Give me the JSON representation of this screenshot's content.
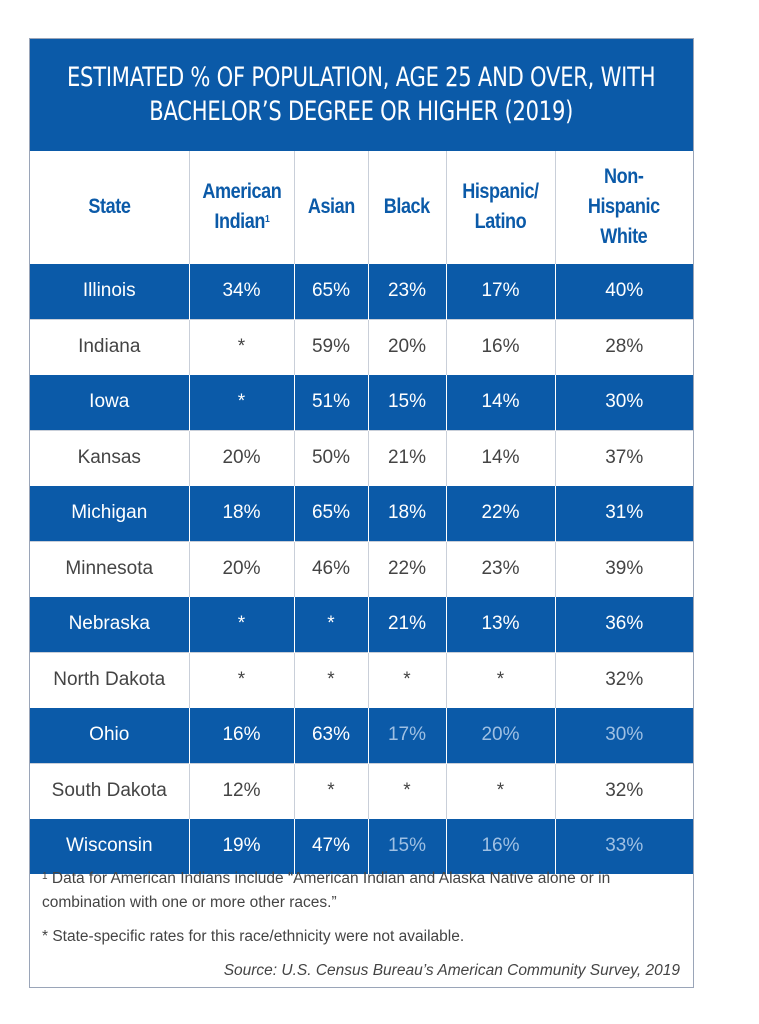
{
  "title": {
    "line1": "ESTIMATED % OF POPULATION, AGE 25 AND OVER, WITH",
    "line2": "BACHELOR’S DEGREE OR HIGHER (2019)"
  },
  "columns": [
    {
      "lines": [
        "State"
      ],
      "sup": ""
    },
    {
      "lines": [
        "American",
        "Indian"
      ],
      "sup": "1"
    },
    {
      "lines": [
        "Asian"
      ],
      "sup": ""
    },
    {
      "lines": [
        "Black"
      ],
      "sup": ""
    },
    {
      "lines": [
        "Hispanic/",
        "Latino"
      ],
      "sup": ""
    },
    {
      "lines": [
        "Non-",
        "Hispanic",
        "White"
      ],
      "sup": ""
    }
  ],
  "chart_data": {
    "type": "table",
    "title": "ESTIMATED % OF POPULATION, AGE 25 AND OVER, WITH BACHELOR’S DEGREE OR HIGHER (2019)",
    "headers": [
      "State",
      "American Indian",
      "Asian",
      "Black",
      "Hispanic/ Latino",
      "Non-Hispanic White"
    ],
    "rows": [
      [
        "Illinois",
        "34%",
        "65%",
        "23%",
        "17%",
        "40%"
      ],
      [
        "Indiana",
        "*",
        "59%",
        "20%",
        "16%",
        "28%"
      ],
      [
        "Iowa",
        "*",
        "51%",
        "15%",
        "14%",
        "30%"
      ],
      [
        "Kansas",
        "20%",
        "50%",
        "21%",
        "14%",
        "37%"
      ],
      [
        "Michigan",
        "18%",
        "65%",
        "18%",
        "22%",
        "31%"
      ],
      [
        "Minnesota",
        "20%",
        "46%",
        "22%",
        "23%",
        "39%"
      ],
      [
        "Nebraska",
        "*",
        "*",
        "21%",
        "13%",
        "36%"
      ],
      [
        "North Dakota",
        "*",
        "*",
        "*",
        "*",
        "32%"
      ],
      [
        "Ohio",
        "16%",
        "63%",
        "17%",
        "20%",
        "30%"
      ],
      [
        "South Dakota",
        "12%",
        "*",
        "*",
        "*",
        "32%"
      ],
      [
        "Wisconsin",
        "19%",
        "47%",
        "15%",
        "16%",
        "33%"
      ]
    ]
  },
  "notes": {
    "footnote_marker": "1",
    "footnote1": "Data for American Indians include “American Indian and Alaska Native alone or in combination with one or more other races.”",
    "footnote2": "* State-specific rates for this race/ethnicity were not available.",
    "source": "Source: U.S. Census Bureau’s American Community Survey, 2019"
  },
  "colors": {
    "brand_blue": "#0b5aa8",
    "muted_text_on_blue": "#9fc0e3",
    "body_text": "#444444"
  }
}
